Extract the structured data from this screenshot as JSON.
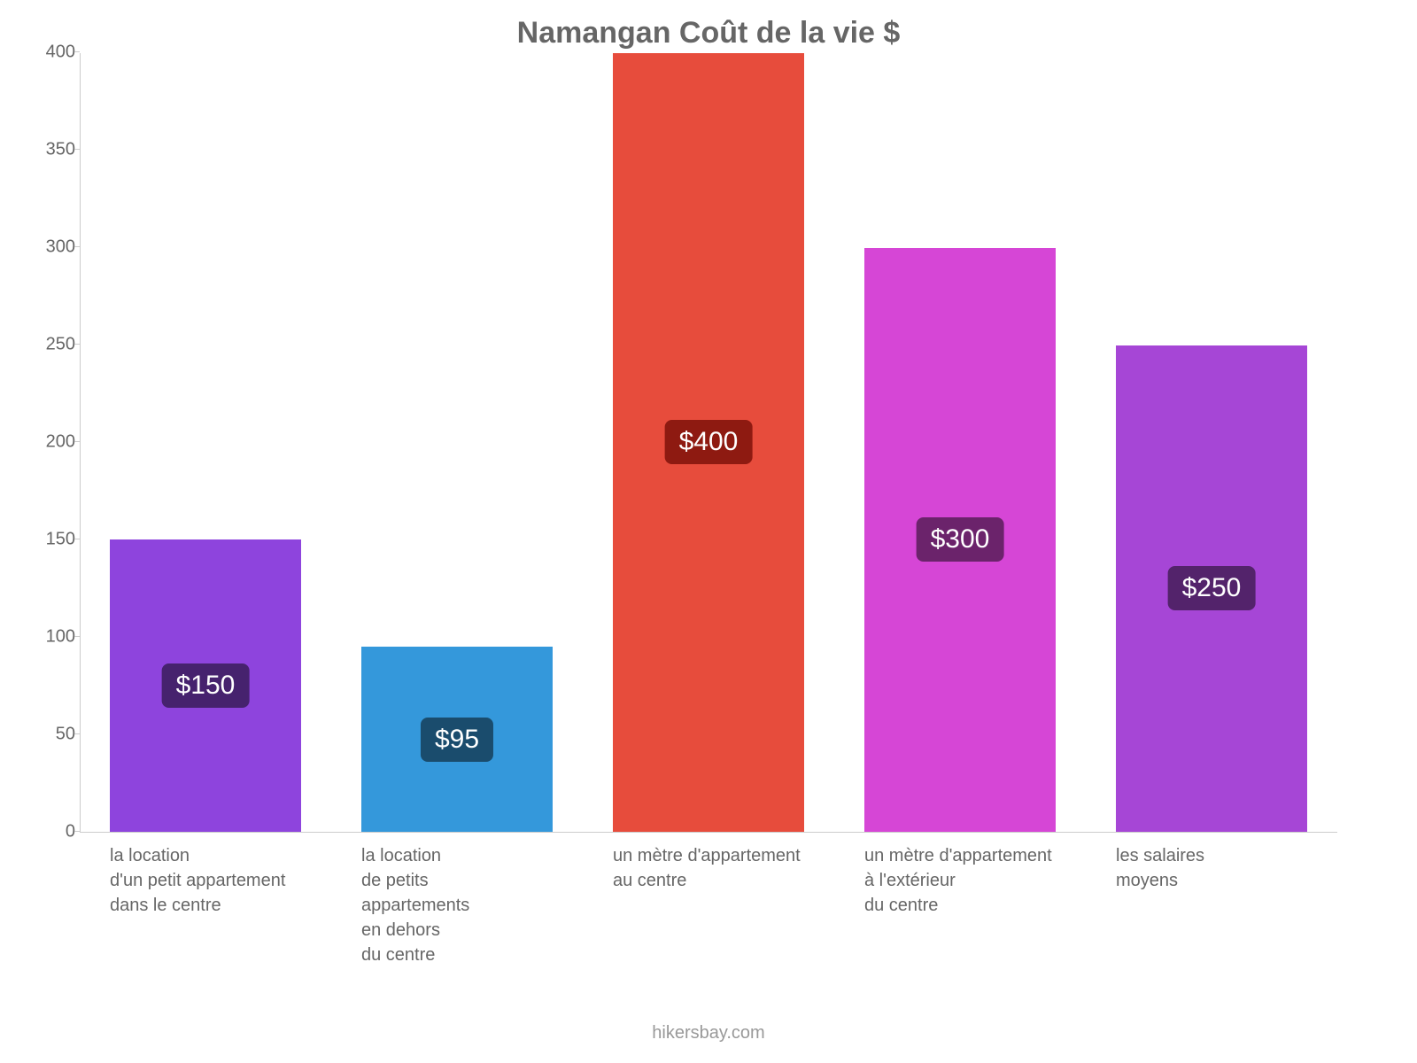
{
  "chart": {
    "type": "bar",
    "title": "Namangan Coût de la vie $",
    "title_color": "#666666",
    "title_fontsize": 34,
    "background_color": "#ffffff",
    "axis_color": "#cccccc",
    "label_color": "#666666",
    "label_fontsize": 20,
    "ylim": [
      0,
      400
    ],
    "ytick_step": 50,
    "yticks": [
      {
        "v": 0,
        "label": "0"
      },
      {
        "v": 50,
        "label": "50"
      },
      {
        "v": 100,
        "label": "100"
      },
      {
        "v": 150,
        "label": "150"
      },
      {
        "v": 200,
        "label": "200"
      },
      {
        "v": 250,
        "label": "250"
      },
      {
        "v": 300,
        "label": "300"
      },
      {
        "v": 350,
        "label": "350"
      },
      {
        "v": 400,
        "label": "400"
      }
    ],
    "bar_width_pct": 76,
    "value_badge_fontsize": 30,
    "value_badge_radius": 8,
    "series": [
      {
        "category": "la location\nd'un petit appartement\ndans le centre",
        "value": 150,
        "display": "$150",
        "bar_color": "#8e44dd",
        "badge_bg": "#46226e"
      },
      {
        "category": "la location\nde petits\nappartements\nen dehors\ndu centre",
        "value": 95,
        "display": "$95",
        "bar_color": "#3498db",
        "badge_bg": "#1a4c6d"
      },
      {
        "category": "un mètre d'appartement\nau centre",
        "value": 400,
        "display": "$400",
        "bar_color": "#e74c3c",
        "badge_bg": "#8e1a11"
      },
      {
        "category": "un mètre d'appartement\nà l'extérieur\ndu centre",
        "value": 300,
        "display": "$300",
        "bar_color": "#d646d6",
        "badge_bg": "#6b236b"
      },
      {
        "category": "les salaires\nmoyens",
        "value": 250,
        "display": "$250",
        "bar_color": "#a646d6",
        "badge_bg": "#53236b"
      }
    ],
    "credit": "hikersbay.com",
    "credit_color": "#999999"
  }
}
